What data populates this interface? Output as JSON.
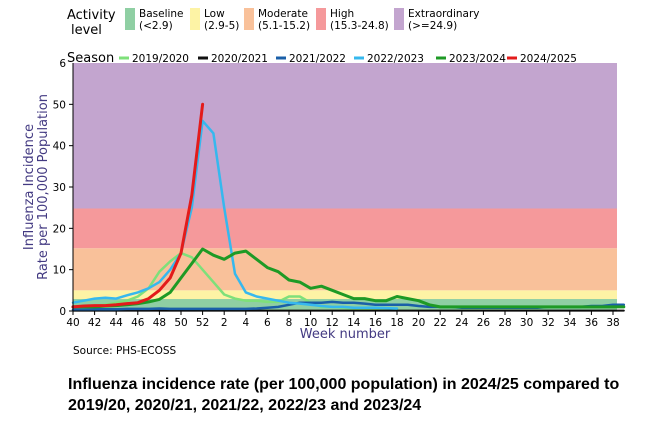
{
  "caption": "Influenza incidence rate (per 100,000 population) in 2024/25 compared to 2019/20, 2020/21, 2021/22, 2022/23 and 2023/24",
  "source": "Source: PHS-ECOSS",
  "chart_data": {
    "type": "line",
    "xlabel": "Week number",
    "ylabel_line1": "Influenza Incidence",
    "ylabel_line2": "Rate per 100,000 Population",
    "x_ticks": [
      "40",
      "42",
      "44",
      "46",
      "48",
      "50",
      "52",
      "2",
      "4",
      "6",
      "8",
      "10",
      "12",
      "14",
      "16",
      "18",
      "20",
      "22",
      "24",
      "26",
      "28",
      "30",
      "32",
      "34",
      "36",
      "38"
    ],
    "y_ticks_top": "6",
    "y_ticks": [
      "0",
      "10",
      "20",
      "30",
      "40",
      "50"
    ],
    "ylim": [
      0,
      60
    ],
    "grid": false,
    "activity_legend_title_line1": "Activity",
    "activity_legend_title_line2": "level",
    "activity_levels": [
      {
        "name": "Baseline",
        "range": "(<2.9)",
        "from": 0,
        "to": 2.9,
        "color": "#8fcfa3"
      },
      {
        "name": "Low",
        "range": "(2.9-5)",
        "from": 2.9,
        "to": 5,
        "color": "#fdf3a5"
      },
      {
        "name": "Moderate",
        "range": "(5.1-15.2)",
        "from": 5,
        "to": 15.2,
        "color": "#f9c19a"
      },
      {
        "name": "High",
        "range": "(15.3-24.8)",
        "from": 15.2,
        "to": 24.8,
        "color": "#f5999b"
      },
      {
        "name": "Extraordinary",
        "range": "(>=24.9)",
        "from": 24.8,
        "to": 60,
        "color": "#c3a5cf"
      }
    ],
    "season_legend_title": "Season",
    "series": [
      {
        "name": "2019/2020",
        "color": "#7ee07a",
        "width": 2.5,
        "values": [
          1.0,
          1.2,
          1.3,
          1.5,
          2.0,
          2.5,
          3.5,
          5.5,
          9.5,
          12.0,
          14.0,
          13.0,
          10.0,
          7.0,
          4.0,
          3.0,
          2.5,
          2.5,
          2.2,
          2.2,
          3.5,
          3.5,
          2.0,
          1.0,
          1.0,
          0.8,
          0.5,
          0.4,
          0.3,
          0.3,
          0.2
        ]
      },
      {
        "name": "2020/2021",
        "color": "#111111",
        "width": 2,
        "values": [
          0.1,
          0.1,
          0.1,
          0.1,
          0.1,
          0.1,
          0.1,
          0.1,
          0.1,
          0.1,
          0.1,
          0.1,
          0.1,
          0.1,
          0.1,
          0.1,
          0.1,
          0.1,
          0.1,
          0.1,
          0.1,
          0.1,
          0.1,
          0.1,
          0.1,
          0.1,
          0.1,
          0.1,
          0.1,
          0.1,
          0.1,
          0.1,
          0.1,
          0.1,
          0.1,
          0.1,
          0.1,
          0.1,
          0.1,
          0.1,
          0.1,
          0.1,
          0.1,
          0.1,
          0.1,
          0.1,
          0.1,
          0.1,
          0.1,
          0.1,
          0.1,
          0.1
        ]
      },
      {
        "name": "2021/2022",
        "color": "#1a5fa8",
        "width": 2.5,
        "values": [
          0.3,
          0.3,
          0.4,
          0.4,
          0.4,
          0.5,
          0.5,
          0.5,
          0.6,
          0.5,
          0.5,
          0.5,
          0.5,
          0.5,
          0.5,
          0.5,
          0.5,
          0.6,
          0.8,
          1.0,
          1.5,
          2.0,
          2.0,
          2.0,
          2.2,
          2.0,
          2.0,
          1.8,
          1.5,
          1.5,
          1.5,
          1.5,
          1.2,
          1.0,
          1.0,
          1.0,
          0.8,
          0.8,
          0.8,
          0.8,
          0.8,
          0.8,
          0.8,
          0.8,
          1.0,
          1.0,
          1.0,
          1.0,
          1.2,
          1.2,
          1.5,
          1.5
        ]
      },
      {
        "name": "2022/2023",
        "color": "#36b8ee",
        "width": 2.5,
        "values": [
          2.0,
          2.5,
          3.0,
          3.2,
          3.0,
          3.8,
          4.5,
          5.5,
          7.0,
          10.0,
          14.0,
          25.0,
          46.0,
          43.0,
          25.0,
          9.0,
          4.5,
          3.5,
          3.0,
          2.5,
          2.0,
          1.8,
          1.5,
          1.2,
          1.0,
          1.0,
          0.8,
          0.8,
          0.8,
          0.7,
          0.6
        ]
      },
      {
        "name": "2023/2024",
        "color": "#1e9a25",
        "width": 3,
        "values": [
          1.0,
          1.0,
          1.0,
          1.2,
          1.3,
          1.5,
          1.8,
          2.2,
          2.8,
          4.5,
          8.0,
          11.5,
          15.0,
          13.5,
          12.5,
          14.0,
          14.5,
          12.5,
          10.5,
          9.5,
          7.5,
          7.0,
          5.5,
          6.0,
          5.0,
          4.0,
          3.0,
          3.0,
          2.5,
          2.5,
          3.5,
          3.0,
          2.5,
          1.5,
          1.0,
          1.0,
          1.0,
          1.0,
          1.0,
          1.0,
          1.0,
          1.0,
          1.0,
          1.0,
          1.0,
          1.0,
          1.0,
          1.0,
          1.0,
          1.0,
          1.0,
          1.0
        ]
      },
      {
        "name": "2024/2025",
        "color": "#e31b1b",
        "width": 3,
        "values": [
          1.0,
          1.2,
          1.3,
          1.3,
          1.5,
          1.8,
          2.0,
          3.0,
          5.0,
          8.0,
          14.0,
          28.0,
          50.0
        ]
      }
    ]
  }
}
